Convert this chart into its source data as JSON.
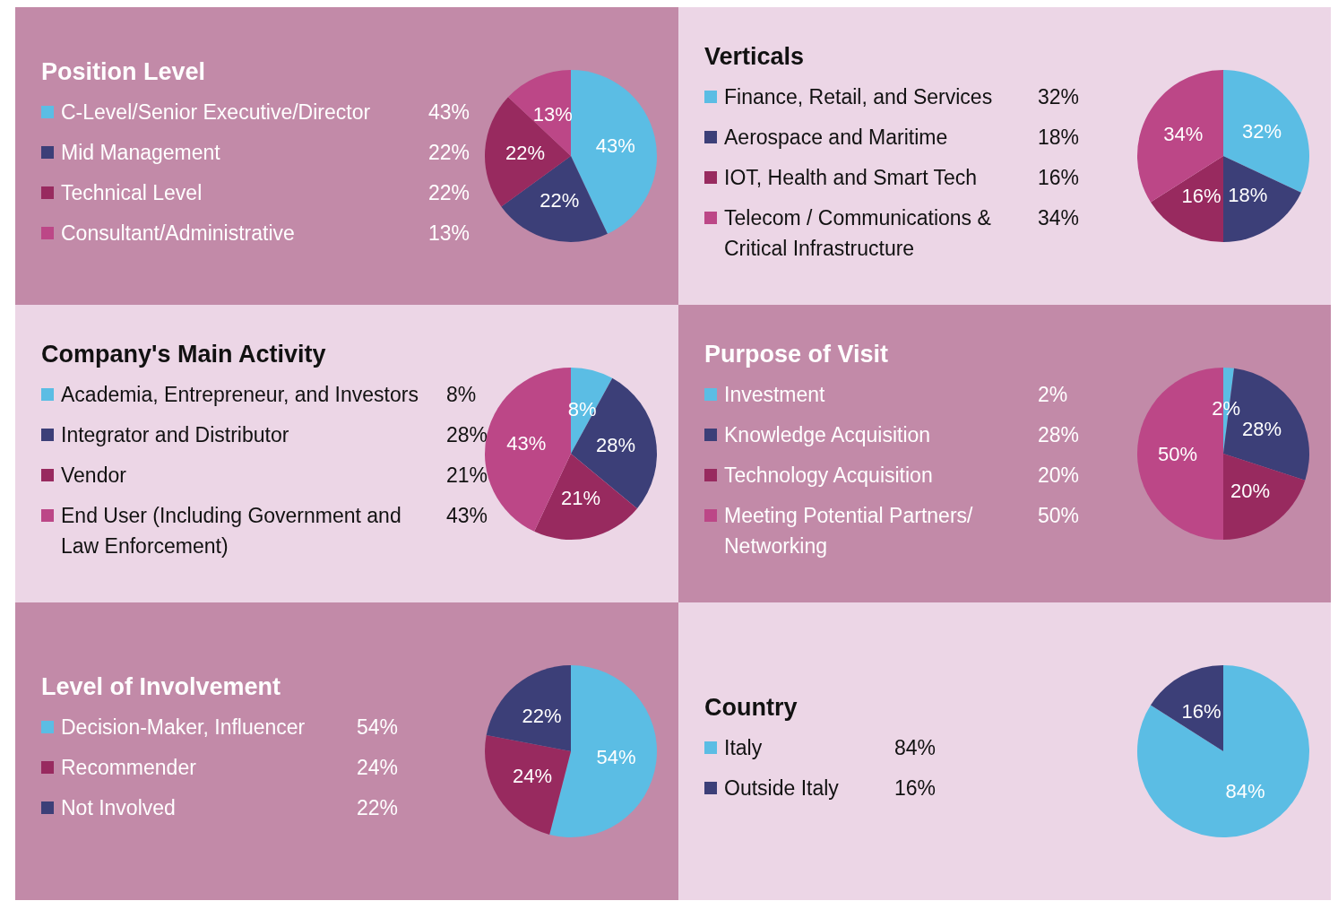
{
  "chart_data": [
    {
      "type": "pie",
      "legend": "left",
      "title": "Position Level",
      "categories": [
        "C-Level/Senior Executive/Director",
        "Mid Management",
        "Technical Level",
        "Consultant/Administrative"
      ],
      "values": [
        43,
        22,
        22,
        13
      ],
      "value_labels": [
        "43%",
        "22%",
        "22%",
        "13%"
      ],
      "colors": [
        "#5bbde4",
        "#3c3f78",
        "#982a5f",
        "#bc4787"
      ]
    },
    {
      "type": "pie",
      "legend": "left",
      "title": "Verticals",
      "categories": [
        "Finance, Retail, and Services",
        "Aerospace and Maritime",
        "IOT, Health and Smart Tech",
        "Telecom / Communications & Critical Infrastructure"
      ],
      "values": [
        32,
        18,
        16,
        34
      ],
      "value_labels": [
        "32%",
        "18%",
        "16%",
        "34%"
      ],
      "colors": [
        "#5bbde4",
        "#3c3f78",
        "#982a5f",
        "#bc4787"
      ]
    },
    {
      "type": "pie",
      "legend": "left",
      "title": "Company's Main Activity",
      "categories": [
        "Academia, Entrepreneur, and Investors",
        "Integrator and Distributor",
        "Vendor",
        "End User (Including Government and Law Enforcement)"
      ],
      "values": [
        8,
        28,
        21,
        43
      ],
      "value_labels": [
        "8%",
        "28%",
        "21%",
        "43%"
      ],
      "colors": [
        "#5bbde4",
        "#3c3f78",
        "#982a5f",
        "#bc4787"
      ]
    },
    {
      "type": "pie",
      "legend": "left",
      "title": "Purpose of Visit",
      "categories": [
        "Investment",
        "Knowledge Acquisition",
        "Technology Acquisition",
        "Meeting Potential Partners/ Networking"
      ],
      "values": [
        2,
        28,
        20,
        50
      ],
      "value_labels": [
        "2%",
        "28%",
        "20%",
        "50%"
      ],
      "colors": [
        "#5bbde4",
        "#3c3f78",
        "#982a5f",
        "#bc4787"
      ]
    },
    {
      "type": "pie",
      "legend": "left",
      "title": "Level of Involvement",
      "categories": [
        "Decision-Maker, Influencer",
        "Recommender",
        "Not Involved"
      ],
      "values": [
        54,
        24,
        22
      ],
      "value_labels": [
        "54%",
        "24%",
        "22%"
      ],
      "colors": [
        "#5bbde4",
        "#982a5f",
        "#3c3f78"
      ]
    },
    {
      "type": "pie",
      "legend": "left",
      "title": "Country",
      "categories": [
        "Italy",
        "Outside Italy"
      ],
      "values": [
        84,
        16
      ],
      "value_labels": [
        "84%",
        "16%"
      ],
      "colors": [
        "#5bbde4",
        "#3c3f78"
      ]
    }
  ]
}
